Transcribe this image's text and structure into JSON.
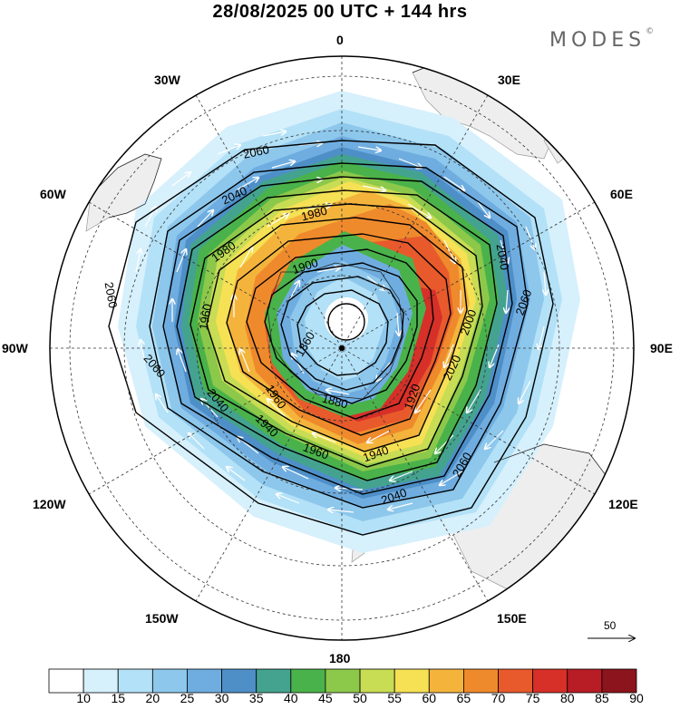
{
  "title": "28/08/2025  00 UTC  + 144 hrs",
  "brand": {
    "name": "MODES",
    "mark": "©"
  },
  "longitude_labels": {
    "top": "0",
    "bottom": "180",
    "w30": "30W",
    "e30": "30E",
    "w60": "60W",
    "e60": "60E",
    "w90": "90W",
    "e90": "90E",
    "w120": "120W",
    "e120": "120E",
    "w150": "150W",
    "e150": "150E"
  },
  "contour_labels": [
    "2060",
    "2040",
    "1980",
    "1900",
    "1980",
    "1960",
    "1960",
    "1940",
    "1880",
    "1860",
    "2060",
    "2040",
    "2060",
    "2040",
    "2000",
    "2060",
    "1920",
    "2020",
    "1940",
    "1960",
    "2060",
    "2040"
  ],
  "wind_scale": {
    "value": "50"
  },
  "colorbar": {
    "labels": [
      "10",
      "15",
      "20",
      "25",
      "30",
      "35",
      "40",
      "45",
      "50",
      "55",
      "60",
      "65",
      "70",
      "75",
      "80",
      "85",
      "90"
    ],
    "colors": [
      "#ffffff",
      "#d6f0fc",
      "#b3e1f7",
      "#8dc7ec",
      "#6fade0",
      "#4e8fc8",
      "#44a38f",
      "#4ab24a",
      "#8cc84a",
      "#c8dc54",
      "#f6e054",
      "#f4b43c",
      "#ef8a2c",
      "#e85a2c",
      "#d63028",
      "#b81c24",
      "#8c141c"
    ]
  }
}
